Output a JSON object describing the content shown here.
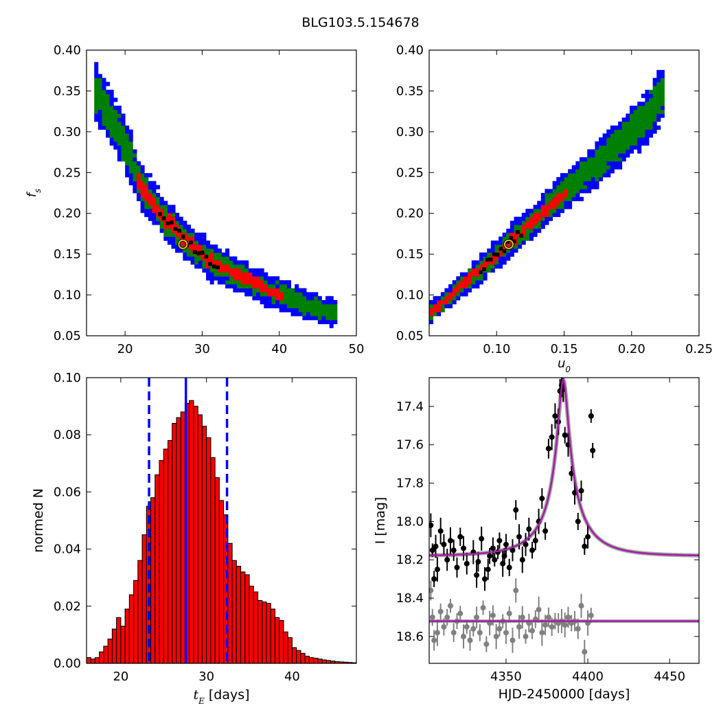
{
  "figure": {
    "title": "BLG103.5.154678"
  },
  "chart_data": [
    {
      "id": "fs-vs-tE",
      "type": "heatmap",
      "title": "",
      "xlabel": "",
      "ylabel": "f_s",
      "xlim": [
        15,
        50
      ],
      "ylim": [
        0.05,
        0.4
      ],
      "xticks": [
        20,
        30,
        40,
        50
      ],
      "yticks": [
        0.05,
        0.1,
        0.15,
        0.2,
        0.25,
        0.3,
        0.35,
        0.4
      ],
      "levels": [
        {
          "name": "3-sigma",
          "color": "#0000ff"
        },
        {
          "name": "2-sigma",
          "color": "#007f00"
        },
        {
          "name": "1-sigma",
          "color": "#ff0000"
        },
        {
          "name": "best",
          "color": "#000000"
        }
      ],
      "ridge": [
        [
          16.5,
          0.345
        ],
        [
          18,
          0.32
        ],
        [
          20,
          0.285
        ],
        [
          22,
          0.235
        ],
        [
          25,
          0.195
        ],
        [
          28,
          0.165
        ],
        [
          31,
          0.142
        ],
        [
          35,
          0.122
        ],
        [
          40,
          0.1
        ],
        [
          44,
          0.086
        ],
        [
          47,
          0.078
        ]
      ],
      "best_fit": {
        "x": 27.5,
        "y": 0.162
      }
    },
    {
      "id": "fs-vs-u0",
      "type": "heatmap",
      "title": "",
      "xlabel": "u_0",
      "ylabel": "",
      "xlim": [
        0.05,
        0.25
      ],
      "ylim": [
        0.05,
        0.4
      ],
      "xticks": [
        0.1,
        0.15,
        0.2,
        0.25
      ],
      "yticks": [
        0.05,
        0.1,
        0.15,
        0.2,
        0.25,
        0.3,
        0.35,
        0.4
      ],
      "levels": [
        {
          "name": "3-sigma",
          "color": "#0000ff"
        },
        {
          "name": "2-sigma",
          "color": "#007f00"
        },
        {
          "name": "1-sigma",
          "color": "#ff0000"
        },
        {
          "name": "best",
          "color": "#000000"
        }
      ],
      "ridge": [
        [
          0.052,
          0.08
        ],
        [
          0.07,
          0.105
        ],
        [
          0.09,
          0.135
        ],
        [
          0.11,
          0.165
        ],
        [
          0.13,
          0.195
        ],
        [
          0.15,
          0.225
        ],
        [
          0.17,
          0.255
        ],
        [
          0.19,
          0.285
        ],
        [
          0.21,
          0.315
        ],
        [
          0.222,
          0.345
        ]
      ],
      "best_fit": {
        "x": 0.109,
        "y": 0.162
      }
    },
    {
      "id": "tE-histogram",
      "type": "bar",
      "title": "",
      "xlabel": "t_E [days]",
      "ylabel": "normed N",
      "xlim": [
        16,
        47.5
      ],
      "ylim": [
        0,
        0.1
      ],
      "xticks": [
        20,
        30,
        40
      ],
      "yticks": [
        0.0,
        0.02,
        0.04,
        0.06,
        0.08,
        0.1
      ],
      "bin_start": 16.0,
      "bin_width": 0.5,
      "values": [
        0.002,
        0.0015,
        0.002,
        0.004,
        0.006,
        0.0085,
        0.012,
        0.016,
        0.013,
        0.019,
        0.024,
        0.029,
        0.036,
        0.045,
        0.055,
        0.058,
        0.066,
        0.071,
        0.075,
        0.078,
        0.084,
        0.086,
        0.088,
        0.091,
        0.092,
        0.09,
        0.087,
        0.083,
        0.079,
        0.072,
        0.065,
        0.057,
        0.052,
        0.042,
        0.036,
        0.034,
        0.032,
        0.031,
        0.027,
        0.025,
        0.022,
        0.0215,
        0.021,
        0.019,
        0.016,
        0.015,
        0.011,
        0.009,
        0.0055,
        0.0045,
        0.0035,
        0.0025,
        0.002,
        0.0018,
        0.0015,
        0.0012,
        0.001,
        0.0008,
        0.0006,
        0.0005,
        0.0004,
        0.0003,
        0.0002
      ],
      "median": 27.6,
      "interval": [
        23.3,
        32.4
      ],
      "bar_color": "#ff0000",
      "line_color": "#0000ff"
    },
    {
      "id": "light-curve",
      "type": "scatter",
      "title": "",
      "xlabel": "HJD-2450000 [days]",
      "ylabel": "I [mag]",
      "xlim": [
        4303,
        4468
      ],
      "ylim": [
        18.74,
        17.25
      ],
      "xticks": [
        4350,
        4400,
        4450
      ],
      "yticks": [
        17.4,
        17.6,
        17.8,
        18.0,
        18.2,
        18.4,
        18.6
      ],
      "model": {
        "t0": 4385,
        "tE": 27.6,
        "u0": 0.109,
        "fs": 0.162,
        "I_base": 18.18,
        "residual_base": 18.52,
        "color": "#a020a0"
      },
      "series": [
        {
          "name": "",
          "color": "#000000",
          "x": [
            4304,
            4305,
            4306,
            4307,
            4308,
            4310,
            4312,
            4314,
            4316,
            4318,
            4320,
            4322,
            4324,
            4326,
            4330,
            4332,
            4333,
            4335,
            4337,
            4339,
            4340,
            4342,
            4343,
            4345,
            4346,
            4348,
            4349,
            4350,
            4352,
            4354,
            4356,
            4358,
            4360,
            4362,
            4364,
            4366,
            4368,
            4370,
            4372,
            4374,
            4376,
            4378,
            4380,
            4382,
            4383,
            4384,
            4385,
            4386,
            4388,
            4390,
            4392,
            4394,
            4396,
            4398,
            4400,
            4402,
            4403
          ],
          "y": [
            18.02,
            18.15,
            18.3,
            18.13,
            18.25,
            18.05,
            18.12,
            18.2,
            18.1,
            18.15,
            18.24,
            18.08,
            18.14,
            18.22,
            18.16,
            18.28,
            18.21,
            18.09,
            18.3,
            18.25,
            18.18,
            18.14,
            18.2,
            18.16,
            18.1,
            18.22,
            18.18,
            18.12,
            18.24,
            18.15,
            17.94,
            18.08,
            18.2,
            18.12,
            18.04,
            18.15,
            18.1,
            18.0,
            17.88,
            18.05,
            17.62,
            17.56,
            17.45,
            17.48,
            17.32,
            17.29,
            17.31,
            17.55,
            17.6,
            17.75,
            17.85,
            18.0,
            17.84,
            18.13,
            18.08,
            17.45,
            17.63
          ]
        },
        {
          "name": "",
          "color": "#808080",
          "x": [
            4304,
            4305,
            4306,
            4308,
            4310,
            4312,
            4314,
            4316,
            4318,
            4320,
            4322,
            4324,
            4326,
            4328,
            4330,
            4332,
            4334,
            4336,
            4338,
            4340,
            4342,
            4344,
            4346,
            4348,
            4350,
            4352,
            4354,
            4356,
            4358,
            4360,
            4362,
            4364,
            4366,
            4368,
            4370,
            4372,
            4374,
            4376,
            4378,
            4380,
            4382,
            4384,
            4386,
            4388,
            4390,
            4392,
            4394,
            4396,
            4398,
            4400,
            4402
          ],
          "y": [
            18.36,
            18.5,
            18.62,
            18.58,
            18.47,
            18.55,
            18.5,
            18.44,
            18.58,
            18.52,
            18.48,
            18.6,
            18.55,
            18.62,
            18.56,
            18.5,
            18.58,
            18.45,
            18.64,
            18.53,
            18.49,
            18.6,
            18.56,
            18.52,
            18.58,
            18.48,
            18.62,
            18.36,
            18.55,
            18.5,
            18.6,
            18.53,
            18.57,
            18.51,
            18.46,
            18.58,
            18.54,
            18.5,
            18.55,
            18.52,
            18.53,
            18.52,
            18.54,
            18.5,
            18.53,
            18.52,
            18.56,
            18.44,
            18.68,
            18.53,
            18.49
          ]
        }
      ]
    }
  ]
}
